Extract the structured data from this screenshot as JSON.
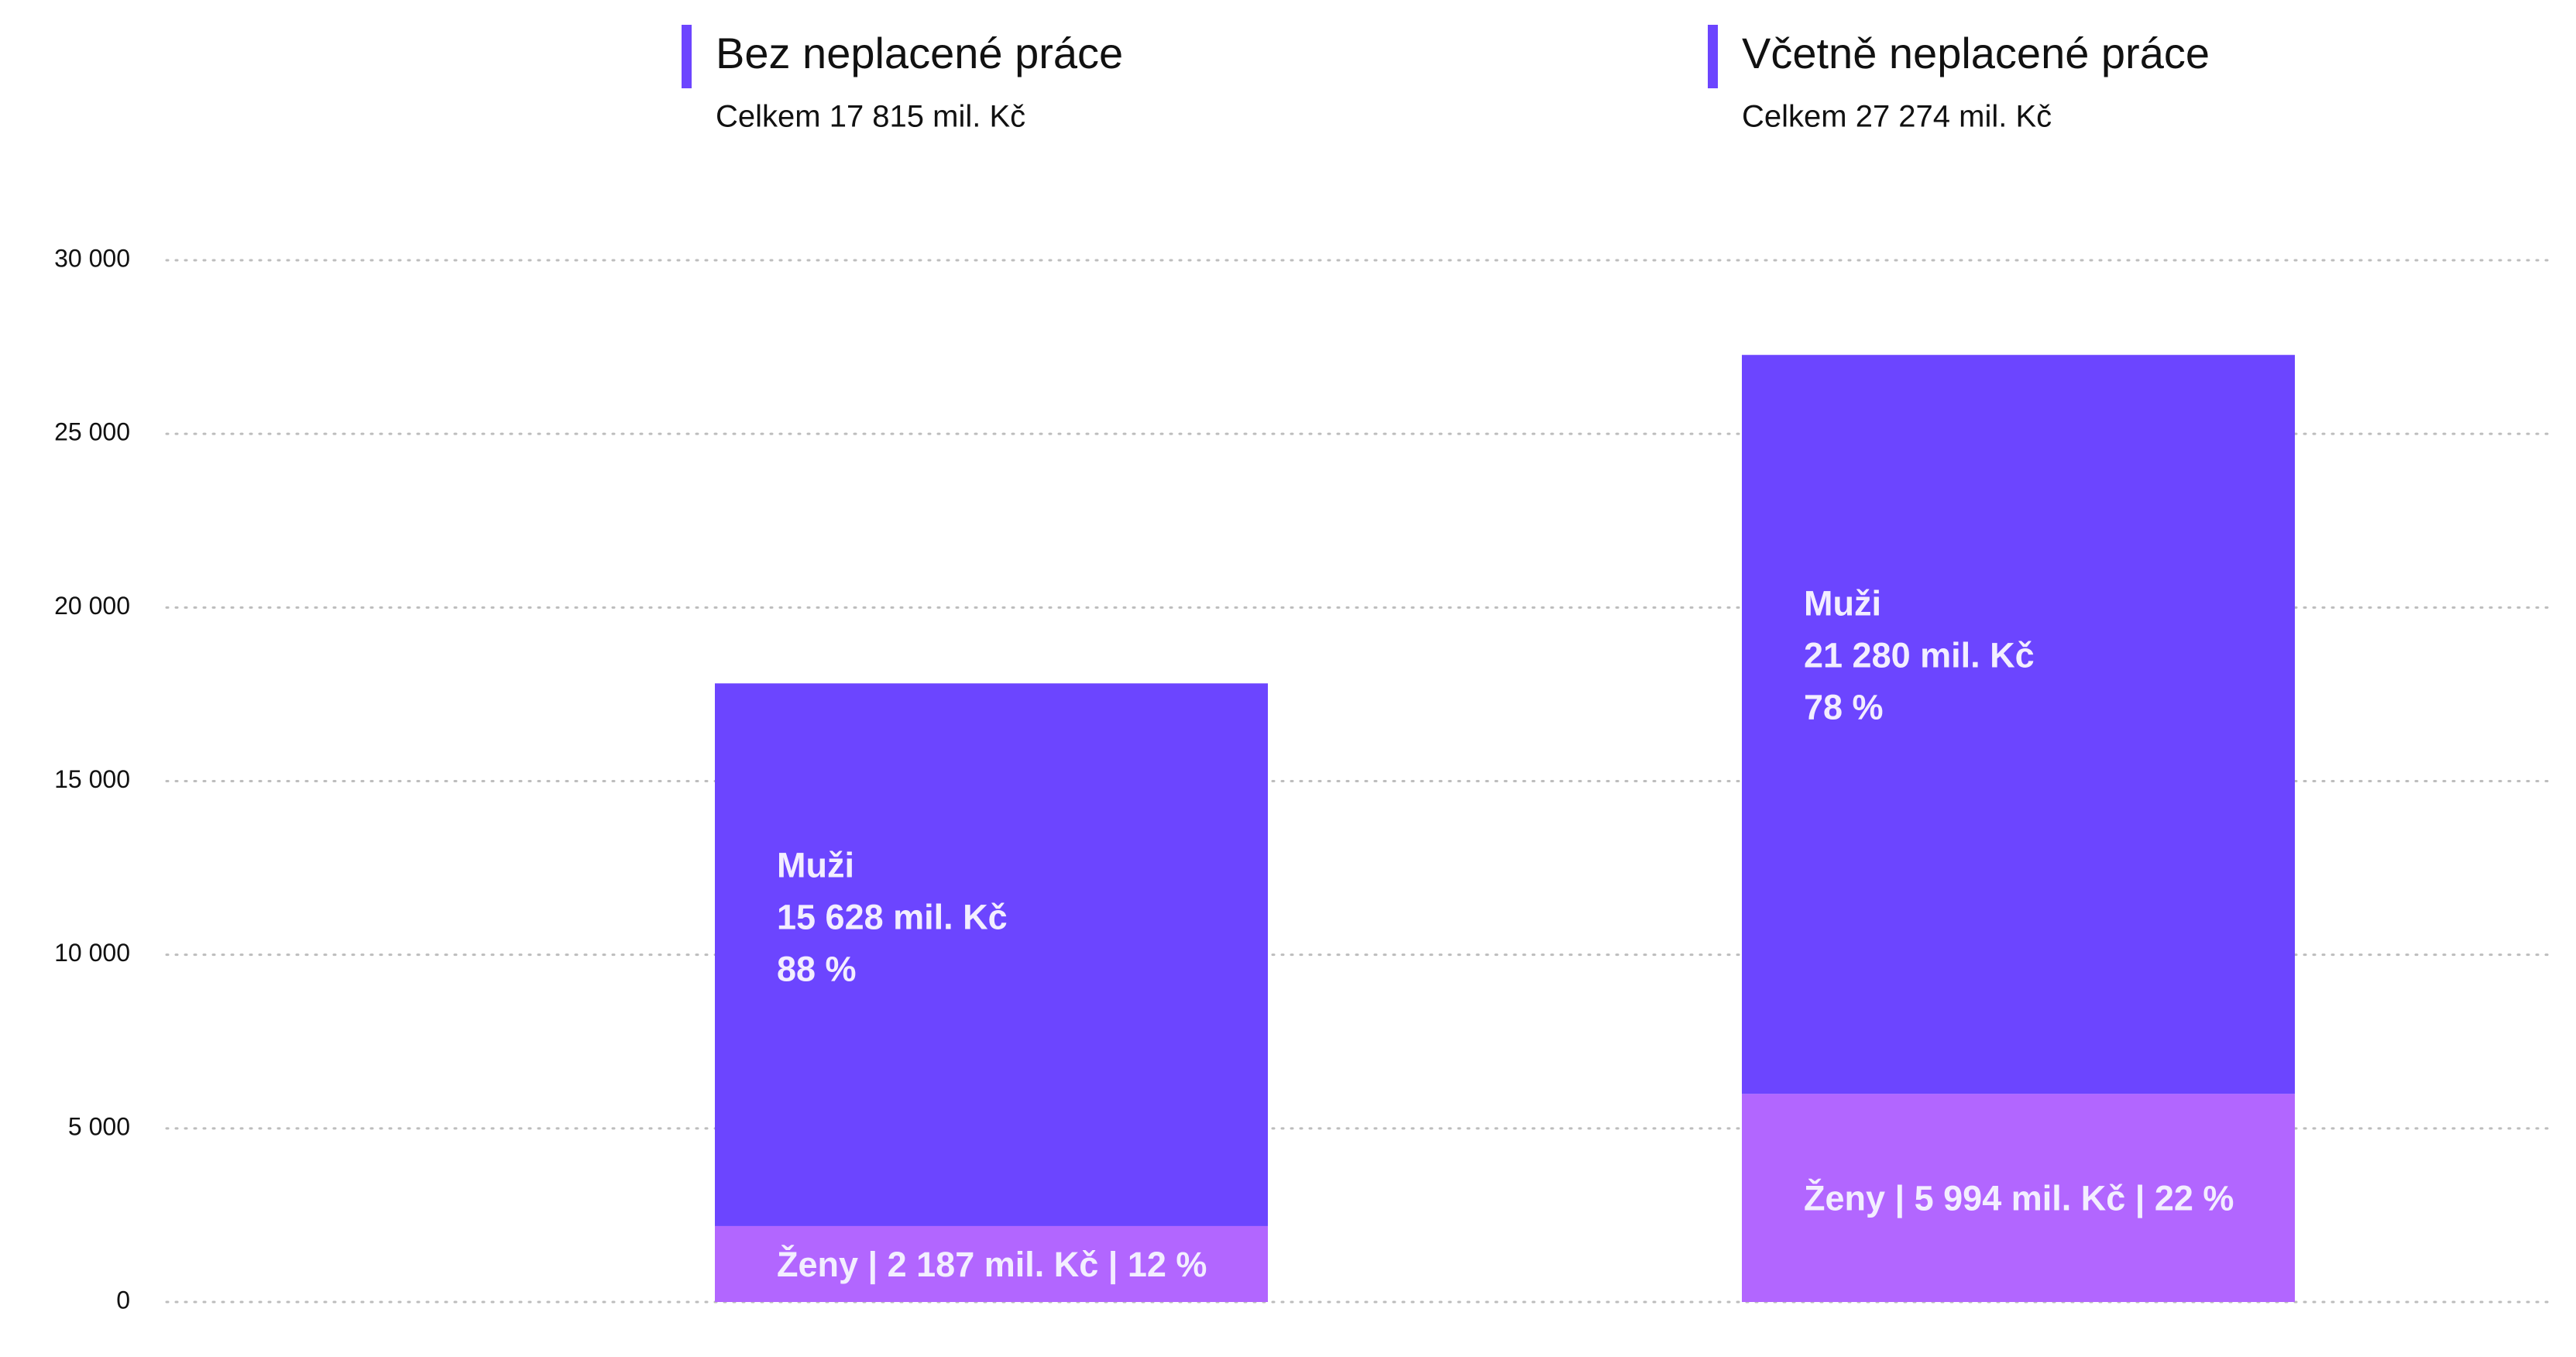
{
  "chart_data": {
    "type": "bar",
    "stacked": true,
    "categories": [
      "Bez neplacené práce",
      "Včetně neplacené práce"
    ],
    "category_subtitles": [
      "Celkem 17 815 mil. Kč",
      "Celkem 27 274 mil. Kč"
    ],
    "series": [
      {
        "name": "Ženy",
        "values": [
          2187,
          5994
        ],
        "labels": [
          "Ženy | 2 187 mil. Kč | 12 %",
          "Ženy | 5 994 mil. Kč | 22 %"
        ]
      },
      {
        "name": "Muži",
        "values": [
          15628,
          21280
        ],
        "labels": [
          [
            "Muži",
            "15 628 mil. Kč",
            "88 %"
          ],
          [
            "Muži",
            "21 280 mil. Kč",
            "78 %"
          ]
        ]
      }
    ],
    "totals": [
      17815,
      27274
    ],
    "ylim": [
      0,
      30000
    ],
    "yticks": [
      0,
      5000,
      10000,
      15000,
      20000,
      25000,
      30000
    ],
    "ytick_labels": [
      "0",
      "5 000",
      "10 000",
      "15 000",
      "20 000",
      "25 000",
      "30 000"
    ],
    "grid": true,
    "colors": {
      "Muži": "#6c45ff",
      "Ženy": "#b266ff",
      "header_marker": "#6c45ff",
      "bar_text": "#f3eeff"
    }
  }
}
